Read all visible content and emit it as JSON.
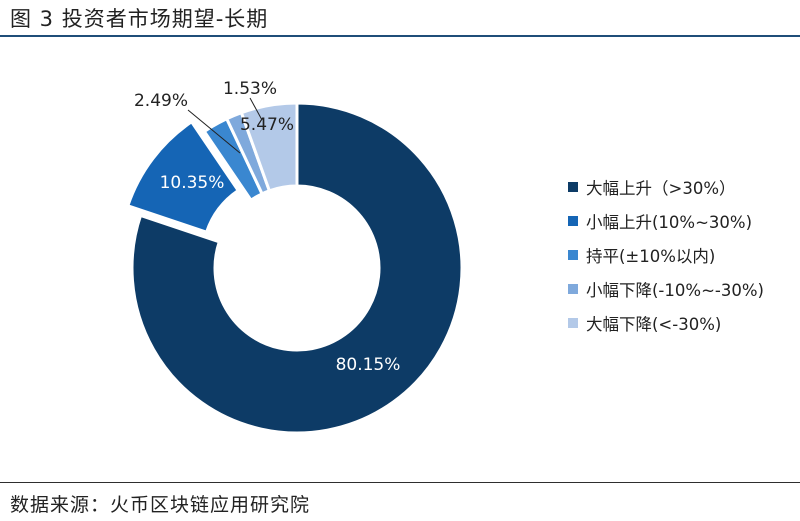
{
  "title": "图 3 投资者市场期望-长期",
  "source": "数据来源：火币区块链应用研究院",
  "chart_data": {
    "type": "pie",
    "variant": "donut",
    "title": "图 3 投资者市场期望-长期",
    "legend_position": "right",
    "slices": [
      {
        "name": "大幅上升（>30%）",
        "value": 80.15,
        "label": "80.15%",
        "color": "#0d3b66"
      },
      {
        "name": "小幅上升(10%~30%)",
        "value": 10.35,
        "label": "10.35%",
        "color": "#1565b5",
        "exploded": true
      },
      {
        "name": "持平(±10%以内)",
        "value": 2.49,
        "label": "2.49%",
        "color": "#3a87d0"
      },
      {
        "name": "小幅下降(-10%~-30%)",
        "value": 1.53,
        "label": "1.53%",
        "color": "#7fa9dc"
      },
      {
        "name": "大幅下降(<-30%)",
        "value": 5.47,
        "label": "5.47%",
        "color": "#b3c9e8"
      }
    ]
  }
}
